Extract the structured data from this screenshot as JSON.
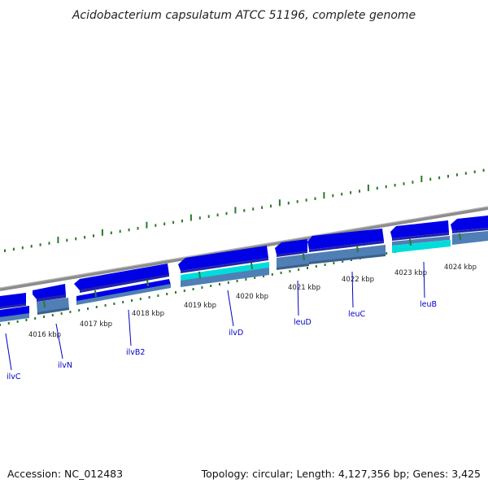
{
  "title": "Acidobacterium capsulatum ATCC 51196, complete genome",
  "accession": "Accession: NC_012483",
  "topology": "Topology: circular; Length: 4,127,356 bp; Genes: 3,425",
  "colors": {
    "backbone": "#8c8c8c",
    "gene_fwd": "#0000e6",
    "gene_hl": "#00dcdc",
    "gene_shade": "#4f7fb5",
    "gc_marks": "#2a7a2a",
    "gene_label": "#0000c8"
  },
  "axis": {
    "unit": "kbp",
    "ticks": [
      {
        "value": 4016,
        "label": "4016 kbp"
      },
      {
        "value": 4017,
        "label": "4017 kbp"
      },
      {
        "value": 4018,
        "label": "4018 kbp"
      },
      {
        "value": 4019,
        "label": "4019 kbp"
      },
      {
        "value": 4020,
        "label": "4020 kbp"
      },
      {
        "value": 4021,
        "label": "4021 kbp"
      },
      {
        "value": 4022,
        "label": "4022 kbp"
      },
      {
        "value": 4023,
        "label": "4023 kbp"
      },
      {
        "value": 4024,
        "label": "4024 kbp"
      }
    ]
  },
  "genes": [
    {
      "name": "ilvC"
    },
    {
      "name": "ilvN"
    },
    {
      "name": "ilvB2"
    },
    {
      "name": "ilvD"
    },
    {
      "name": "leuD"
    },
    {
      "name": "leuC"
    },
    {
      "name": "leuB"
    }
  ]
}
